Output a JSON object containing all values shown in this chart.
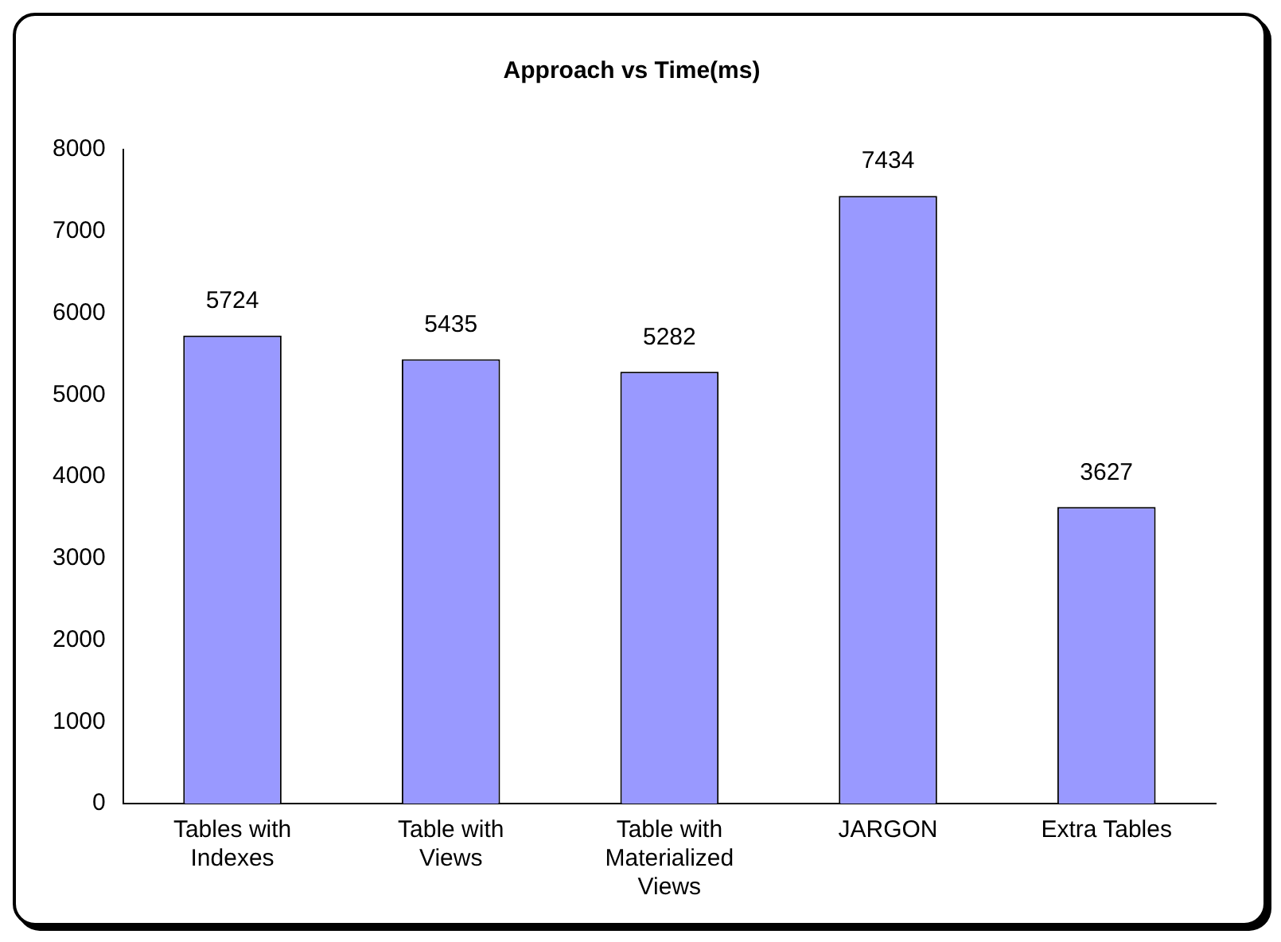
{
  "chart_data": {
    "type": "bar",
    "title": "Approach vs Time(ms)",
    "categories": [
      "Tables with Indexes",
      "Table with Views",
      "Table with Materialized Views",
      "JARGON",
      "Extra Tables"
    ],
    "values": [
      5724,
      5435,
      5282,
      7434,
      3627
    ],
    "color": "#9999ff",
    "ylim": [
      0,
      8000
    ],
    "yticks": [
      0,
      1000,
      2000,
      3000,
      4000,
      5000,
      6000,
      7000,
      8000
    ],
    "grid": false,
    "legend": false,
    "data_labels": true
  }
}
